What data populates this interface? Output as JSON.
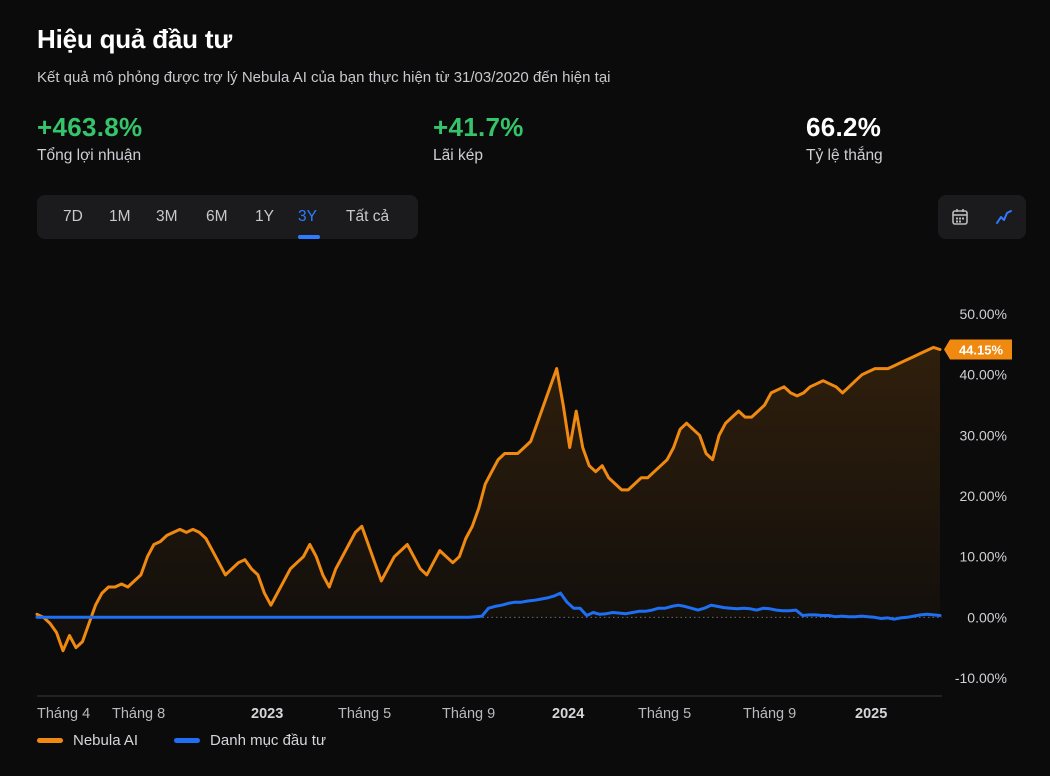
{
  "header": {
    "title": "Hiệu quả đầu tư",
    "subtitle": "Kết quả mô phỏng được trợ lý Nebula AI của bạn thực hiện từ 31/03/2020 đến hiện tại"
  },
  "stats": [
    {
      "value": "+463.8%",
      "label": "Tổng lợi nhuận",
      "color": "#35c46a"
    },
    {
      "value": "+41.7%",
      "label": "Lãi kép",
      "color": "#35c46a"
    },
    {
      "value": "66.2%",
      "label": "Tỷ lệ thắng",
      "color": "#ffffff"
    }
  ],
  "ranges": [
    "7D",
    "1M",
    "3M",
    "6M",
    "1Y",
    "3Y",
    "Tất cả"
  ],
  "active_range": "3Y",
  "view_toggle": {
    "icons": [
      "calendar-icon",
      "line-chart-icon"
    ],
    "active": "line-chart-icon"
  },
  "colors": {
    "accent": "#2f7bff",
    "positive": "#35c46a",
    "nebula": "#f0890f",
    "portfolio": "#1f6ff2"
  },
  "chart_data": {
    "type": "line",
    "ylim": [
      -10,
      50
    ],
    "y_ticks": [
      "50.00%",
      "40.00%",
      "30.00%",
      "20.00%",
      "10.00%",
      "0.00%",
      "-10.00%"
    ],
    "y_tick_values": [
      50,
      40,
      30,
      20,
      10,
      0,
      -10
    ],
    "x_tick_labels": [
      {
        "label": "Tháng 4",
        "bold": false
      },
      {
        "label": "Tháng 8",
        "bold": false
      },
      {
        "label": "2023",
        "bold": true
      },
      {
        "label": "Tháng 5",
        "bold": false
      },
      {
        "label": "Tháng 9",
        "bold": false
      },
      {
        "label": "2024",
        "bold": true
      },
      {
        "label": "Tháng 5",
        "bold": false
      },
      {
        "label": "Tháng 9",
        "bold": false
      },
      {
        "label": "2025",
        "bold": true
      }
    ],
    "x_tick_positions": [
      0.0,
      0.16,
      0.315,
      0.455,
      0.58,
      0.72,
      0.845,
      0.955,
      1.09
    ],
    "last_value_label": "44.15%",
    "series": [
      {
        "name": "Nebula AI",
        "color": "#f0890f",
        "values": [
          0.5,
          0,
          -1,
          -2.5,
          -5.5,
          -3,
          -5,
          -4,
          -1,
          2,
          4,
          5,
          5,
          5.5,
          5,
          6,
          7,
          10,
          12,
          12.5,
          13.5,
          14,
          14.5,
          14,
          14.5,
          14,
          13,
          11,
          9,
          7,
          8,
          9,
          9.5,
          8,
          7,
          4,
          2,
          4,
          6,
          8,
          9,
          10,
          12,
          10,
          7,
          5,
          8,
          10,
          12,
          14,
          15,
          12,
          9,
          6,
          8,
          10,
          11,
          12,
          10,
          8,
          7,
          9,
          11,
          10,
          9,
          10,
          13,
          15,
          18,
          22,
          24,
          26,
          27,
          27,
          27,
          28,
          29,
          32,
          35,
          38,
          41,
          35,
          28,
          34,
          28,
          25,
          24,
          25,
          23,
          22,
          21,
          21,
          22,
          23,
          23,
          24,
          25,
          26,
          28,
          31,
          32,
          31,
          30,
          27,
          26,
          30,
          32,
          33,
          34,
          33,
          33,
          34,
          35,
          37,
          37.5,
          38,
          37,
          36.5,
          37,
          38,
          38.5,
          39,
          38.5,
          38,
          37,
          38,
          39,
          40,
          40.5,
          41,
          41,
          41,
          41.5,
          42,
          42.5,
          43,
          43.5,
          44,
          44.5,
          44.15
        ]
      },
      {
        "name": "Danh mục đầu tư",
        "color": "#1f6ff2",
        "values": [
          0,
          0,
          0,
          0,
          0,
          0,
          0,
          0,
          0,
          0,
          0,
          0,
          0,
          0,
          0,
          0,
          0,
          0,
          0,
          0,
          0,
          0,
          0,
          0,
          0,
          0,
          0,
          0,
          0,
          0,
          0,
          0,
          0,
          0,
          0,
          0,
          0,
          0,
          0,
          0,
          0,
          0,
          0,
          0,
          0,
          0,
          0,
          0,
          0,
          0,
          0,
          0,
          0,
          0,
          0,
          0,
          0,
          0,
          0,
          0,
          0,
          0,
          0,
          0,
          0,
          0,
          0,
          0.1,
          0.2,
          1.5,
          1.8,
          2,
          2.3,
          2.5,
          2.5,
          2.7,
          2.8,
          3,
          3.2,
          3.5,
          4,
          2.5,
          1.5,
          1.5,
          0.3,
          0.8,
          0.5,
          0.6,
          0.8,
          0.7,
          0.6,
          0.8,
          1,
          1,
          1.2,
          1.5,
          1.5,
          1.8,
          2,
          1.8,
          1.5,
          1.2,
          1.5,
          2,
          1.8,
          1.6,
          1.5,
          1.4,
          1.5,
          1.4,
          1.2,
          1.5,
          1.4,
          1.2,
          1.1,
          1.1,
          1.2,
          0.3,
          0.4,
          0.4,
          0.3,
          0.3,
          0.1,
          0.2,
          0.1,
          0.1,
          0.2,
          0.1,
          0,
          -0.2,
          -0.1,
          -0.3,
          -0.1,
          0,
          0.2,
          0.4,
          0.5,
          0.4,
          0.3
        ]
      }
    ]
  }
}
